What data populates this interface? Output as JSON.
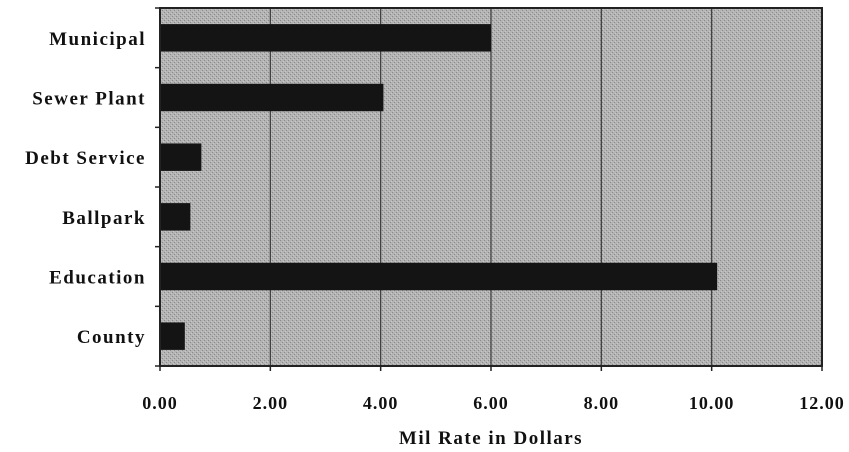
{
  "chart_data": {
    "type": "bar",
    "orientation": "horizontal",
    "categories": [
      "Municipal",
      "Sewer Plant",
      "Debt Service",
      "Ballpark",
      "Education",
      "County"
    ],
    "values": [
      6.0,
      4.05,
      0.75,
      0.55,
      10.1,
      0.45
    ],
    "xlabel": "Mil Rate in Dollars",
    "ylabel": "",
    "xlim": [
      0,
      12
    ],
    "xticks": [
      "0.00",
      "2.00",
      "4.00",
      "6.00",
      "8.00",
      "10.00",
      "12.00"
    ],
    "grid": "vertical",
    "legend": "none",
    "colors": {
      "plot_background": "#a9a9a9",
      "bar": "#141414",
      "gridline": "#3a3a3a",
      "frame": "#222222"
    }
  }
}
